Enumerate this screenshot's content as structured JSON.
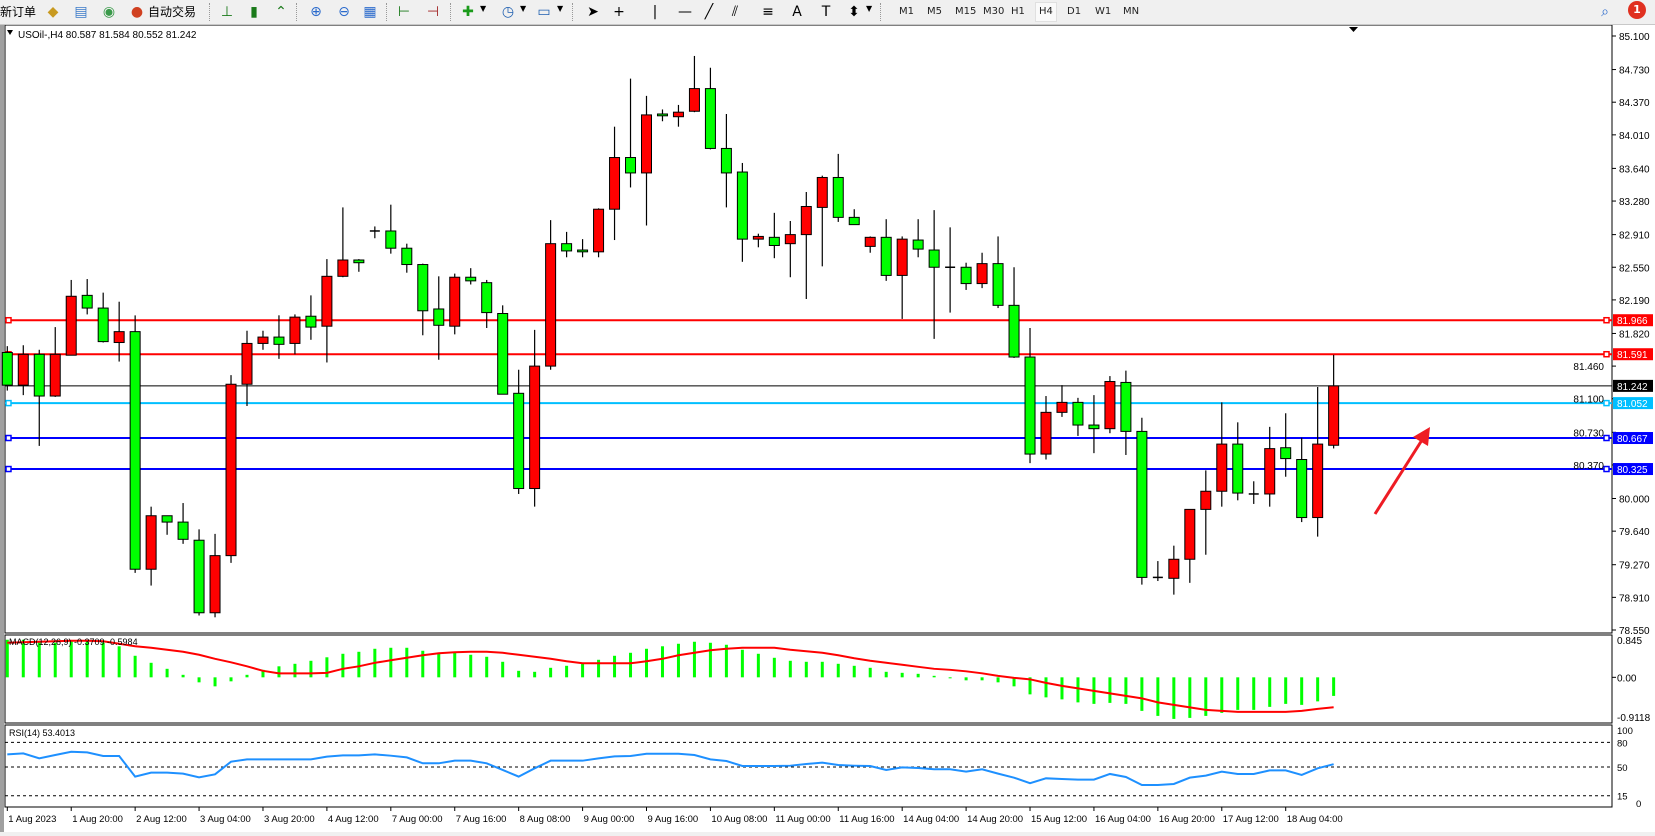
{
  "toolbar": {
    "new_order": "新订单",
    "auto_trading": "自动交易",
    "icons": [
      "gold-bars-icon",
      "database-icon",
      "signal-icon",
      "auto-trading-icon",
      "bar-chart-icon",
      "candlestick-icon",
      "line-chart-icon",
      "zoom-in-icon",
      "zoom-out-icon",
      "tile-windows-icon",
      "chart-shift-icon",
      "autoscroll-icon",
      "new-chart-icon",
      "clock-icon",
      "template-icon",
      "cursor-icon",
      "crosshair-icon",
      "vertical-line-icon",
      "horizontal-line-icon",
      "trendline-icon",
      "equidistant-channel-icon",
      "fibonacci-icon",
      "text-icon",
      "text-label-icon",
      "arrows-icon",
      "search-icon",
      "notification-icon"
    ],
    "timeframes": [
      "M1",
      "M5",
      "M15",
      "M30",
      "H1",
      "H4",
      "D1",
      "W1",
      "MN"
    ],
    "active_timeframe": "H4",
    "notification_count": "1"
  },
  "chart": {
    "header": "USOil-,H4  80.587 81.584 80.552 81.242",
    "macd_label": "MACD(12,26,9) -0.3709 -0.5984",
    "rsi_label": "RSI(14) 53.4013"
  },
  "chart_data": {
    "type": "candlestick",
    "symbol": "USOil-",
    "timeframe": "H4",
    "ohlc_fields": [
      "open",
      "high",
      "low",
      "close"
    ],
    "up_color": "#ff0000",
    "down_color": "#00ff00",
    "ylim": [
      78.55,
      85.1
    ],
    "price_ticks": [
      "85.100",
      "84.730",
      "84.370",
      "84.010",
      "83.640",
      "83.280",
      "82.910",
      "82.550",
      "82.190",
      "81.820",
      "81.460",
      "81.100",
      "80.730",
      "80.370",
      "80.000",
      "79.640",
      "79.270",
      "78.910",
      "78.550"
    ],
    "time_labels": [
      "1 Aug 2023",
      "1 Aug 20:00",
      "2 Aug 12:00",
      "3 Aug 04:00",
      "3 Aug 20:00",
      "4 Aug 12:00",
      "7 Aug 00:00",
      "7 Aug 16:00",
      "8 Aug 08:00",
      "9 Aug 00:00",
      "9 Aug 16:00",
      "10 Aug 08:00",
      "11 Aug 00:00",
      "11 Aug 16:00",
      "14 Aug 04:00",
      "14 Aug 20:00",
      "15 Aug 12:00",
      "16 Aug 04:00",
      "16 Aug 20:00",
      "17 Aug 12:00",
      "18 Aug 04:00"
    ],
    "candles": [
      [
        81.61,
        81.68,
        81.19,
        81.25
      ],
      [
        81.25,
        81.69,
        81.14,
        81.59
      ],
      [
        81.59,
        81.64,
        80.58,
        81.13
      ],
      [
        81.13,
        81.89,
        81.12,
        81.59
      ],
      [
        81.58,
        82.41,
        81.58,
        82.23
      ],
      [
        82.24,
        82.42,
        82.03,
        82.1
      ],
      [
        82.1,
        82.27,
        81.72,
        81.73
      ],
      [
        81.72,
        82.17,
        81.51,
        81.84
      ],
      [
        81.84,
        82.02,
        79.18,
        79.22
      ],
      [
        79.22,
        79.91,
        79.04,
        79.81
      ],
      [
        79.81,
        79.81,
        79.6,
        79.74
      ],
      [
        79.74,
        79.95,
        79.5,
        79.55
      ],
      [
        79.54,
        79.66,
        78.71,
        78.74
      ],
      [
        78.74,
        79.61,
        78.69,
        79.37
      ],
      [
        79.37,
        81.36,
        79.29,
        81.26
      ],
      [
        81.26,
        81.85,
        81.02,
        81.71
      ],
      [
        81.71,
        81.85,
        81.64,
        81.78
      ],
      [
        81.78,
        82.02,
        81.54,
        81.7
      ],
      [
        81.71,
        82.03,
        81.59,
        82.0
      ],
      [
        82.01,
        82.24,
        81.75,
        81.89
      ],
      [
        81.9,
        82.64,
        81.5,
        82.45
      ],
      [
        82.45,
        83.21,
        82.44,
        82.63
      ],
      [
        82.63,
        82.64,
        82.5,
        82.6
      ],
      [
        82.95,
        83.0,
        82.87,
        82.95
      ],
      [
        82.95,
        83.24,
        82.7,
        82.76
      ],
      [
        82.76,
        82.81,
        82.49,
        82.58
      ],
      [
        82.58,
        82.59,
        81.8,
        82.07
      ],
      [
        82.09,
        82.45,
        81.53,
        81.91
      ],
      [
        81.9,
        82.48,
        81.81,
        82.44
      ],
      [
        82.44,
        82.54,
        82.36,
        82.4
      ],
      [
        82.38,
        82.41,
        81.88,
        82.05
      ],
      [
        82.04,
        82.13,
        81.15,
        81.15
      ],
      [
        81.16,
        81.42,
        80.05,
        80.11
      ],
      [
        80.11,
        81.86,
        79.91,
        81.46
      ],
      [
        81.46,
        83.07,
        81.42,
        82.81
      ],
      [
        82.81,
        82.94,
        82.66,
        82.73
      ],
      [
        82.74,
        82.86,
        82.66,
        82.72
      ],
      [
        82.72,
        83.2,
        82.66,
        83.19
      ],
      [
        83.19,
        84.1,
        82.85,
        83.76
      ],
      [
        83.76,
        84.63,
        83.43,
        83.59
      ],
      [
        83.59,
        84.44,
        83.01,
        84.23
      ],
      [
        84.24,
        84.29,
        84.16,
        84.22
      ],
      [
        84.21,
        84.34,
        84.1,
        84.26
      ],
      [
        84.27,
        84.88,
        84.26,
        84.52
      ],
      [
        84.52,
        84.75,
        83.85,
        83.86
      ],
      [
        83.86,
        84.24,
        83.21,
        83.59
      ],
      [
        83.6,
        83.7,
        82.61,
        82.86
      ],
      [
        82.86,
        82.92,
        82.77,
        82.89
      ],
      [
        82.88,
        83.15,
        82.65,
        82.79
      ],
      [
        82.81,
        83.06,
        82.44,
        82.91
      ],
      [
        82.91,
        83.38,
        82.2,
        83.22
      ],
      [
        83.21,
        83.56,
        82.56,
        83.54
      ],
      [
        83.54,
        83.8,
        83.05,
        83.1
      ],
      [
        83.1,
        83.19,
        83.02,
        83.02
      ],
      [
        82.78,
        82.89,
        82.71,
        82.88
      ],
      [
        82.88,
        83.08,
        82.4,
        82.46
      ],
      [
        82.46,
        82.89,
        81.98,
        82.86
      ],
      [
        82.85,
        83.08,
        82.66,
        82.75
      ],
      [
        82.74,
        83.18,
        81.76,
        82.55
      ],
      [
        82.55,
        82.99,
        82.05,
        82.55
      ],
      [
        82.55,
        82.6,
        82.3,
        82.37
      ],
      [
        82.37,
        82.71,
        82.32,
        82.59
      ],
      [
        82.59,
        82.89,
        82.1,
        82.13
      ],
      [
        82.13,
        82.55,
        81.55,
        81.56
      ],
      [
        81.56,
        81.88,
        80.39,
        80.49
      ],
      [
        80.49,
        81.13,
        80.43,
        80.95
      ],
      [
        80.95,
        81.25,
        80.9,
        81.06
      ],
      [
        81.06,
        81.11,
        80.69,
        80.81
      ],
      [
        80.81,
        81.14,
        80.5,
        80.77
      ],
      [
        80.77,
        81.35,
        80.72,
        81.29
      ],
      [
        81.28,
        81.41,
        80.48,
        80.74
      ],
      [
        80.74,
        80.89,
        79.05,
        79.13
      ],
      [
        79.13,
        79.31,
        79.09,
        79.13
      ],
      [
        79.12,
        79.48,
        78.94,
        79.33
      ],
      [
        79.33,
        79.88,
        79.07,
        79.88
      ],
      [
        79.88,
        80.31,
        79.38,
        80.08
      ],
      [
        80.08,
        81.06,
        79.91,
        80.6
      ],
      [
        80.6,
        80.84,
        79.98,
        80.06
      ],
      [
        80.05,
        80.19,
        79.94,
        80.05
      ],
      [
        80.05,
        80.79,
        79.91,
        80.55
      ],
      [
        80.56,
        80.94,
        80.24,
        80.44
      ],
      [
        80.43,
        80.67,
        79.74,
        79.79
      ],
      [
        79.79,
        81.23,
        79.58,
        80.6
      ],
      [
        80.587,
        81.584,
        80.552,
        81.242
      ]
    ],
    "levels": [
      {
        "price": "81.966",
        "color": "#ff0000"
      },
      {
        "price": "81.591",
        "color": "#ff0000"
      },
      {
        "price": "81.242",
        "color": "#000000"
      },
      {
        "price": "81.052",
        "color": "#00bfff"
      },
      {
        "price": "80.667",
        "color": "#0000ff"
      },
      {
        "price": "80.325",
        "color": "#0000ff"
      }
    ],
    "annotation": {
      "type": "arrow",
      "color": "#ee1c24",
      "direction": "up-right"
    },
    "macd": {
      "ylim": [
        -0.9118,
        0.845
      ],
      "ticks": [
        "0.845",
        "0.00",
        "-0.9118"
      ],
      "histogram_color": "#00ff00",
      "signal_color": "#ff0000",
      "histogram": [
        0.75,
        0.75,
        0.72,
        0.69,
        0.72,
        0.72,
        0.69,
        0.62,
        0.43,
        0.29,
        0.17,
        0.05,
        -0.1,
        -0.18,
        -0.08,
        0.05,
        0.15,
        0.22,
        0.27,
        0.33,
        0.4,
        0.47,
        0.51,
        0.57,
        0.59,
        0.59,
        0.53,
        0.49,
        0.49,
        0.45,
        0.41,
        0.31,
        0.13,
        0.11,
        0.19,
        0.23,
        0.27,
        0.35,
        0.43,
        0.49,
        0.57,
        0.62,
        0.67,
        0.71,
        0.69,
        0.65,
        0.55,
        0.47,
        0.39,
        0.33,
        0.31,
        0.31,
        0.27,
        0.23,
        0.19,
        0.11,
        0.09,
        0.07,
        0.03,
        -0.01,
        -0.06,
        -0.06,
        -0.1,
        -0.18,
        -0.34,
        -0.4,
        -0.44,
        -0.5,
        -0.53,
        -0.51,
        -0.53,
        -0.67,
        -0.77,
        -0.83,
        -0.81,
        -0.77,
        -0.71,
        -0.65,
        -0.65,
        -0.59,
        -0.53,
        -0.55,
        -0.48,
        -0.3709
      ],
      "signal": [
        0.69,
        0.7,
        0.71,
        0.72,
        0.73,
        0.73,
        0.72,
        0.67,
        0.62,
        0.59,
        0.55,
        0.51,
        0.45,
        0.37,
        0.3,
        0.22,
        0.13,
        0.08,
        0.08,
        0.08,
        0.09,
        0.17,
        0.22,
        0.29,
        0.34,
        0.39,
        0.44,
        0.48,
        0.5,
        0.51,
        0.51,
        0.49,
        0.45,
        0.41,
        0.37,
        0.32,
        0.28,
        0.28,
        0.28,
        0.28,
        0.32,
        0.37,
        0.44,
        0.49,
        0.54,
        0.57,
        0.59,
        0.59,
        0.59,
        0.55,
        0.52,
        0.49,
        0.44,
        0.38,
        0.33,
        0.29,
        0.25,
        0.21,
        0.17,
        0.15,
        0.12,
        0.08,
        0.03,
        -0.01,
        -0.04,
        -0.11,
        -0.17,
        -0.22,
        -0.27,
        -0.32,
        -0.37,
        -0.42,
        -0.5,
        -0.55,
        -0.6,
        -0.65,
        -0.67,
        -0.69,
        -0.69,
        -0.69,
        -0.69,
        -0.67,
        -0.63,
        -0.5984
      ]
    },
    "rsi": {
      "ylim": [
        0,
        100
      ],
      "ticks": [
        "100",
        "80",
        "50",
        "15",
        "0"
      ],
      "levels": [
        80,
        50,
        15
      ],
      "color": "#1e90ff",
      "values": [
        65.4,
        66.6,
        60.5,
        64.6,
        68.6,
        67.8,
        63.4,
        63.4,
        38.3,
        43.1,
        43.1,
        41.9,
        37.4,
        41.1,
        56.5,
        59.3,
        59.3,
        59.3,
        59.3,
        59.3,
        62.6,
        64.2,
        64.2,
        65.4,
        63.8,
        61.7,
        54.5,
        54.5,
        57.7,
        57.7,
        54.5,
        46.4,
        38.3,
        48.4,
        57.7,
        57.7,
        57.7,
        60.5,
        63.0,
        63.4,
        66.2,
        66.2,
        66.2,
        64.6,
        59.3,
        57.3,
        51.2,
        51.2,
        51.2,
        51.6,
        53.6,
        55.3,
        52.4,
        51.6,
        51.2,
        46.4,
        49.6,
        48.8,
        47.2,
        47.2,
        44.3,
        47.2,
        41.9,
        37.0,
        30.2,
        36.2,
        35.4,
        34.6,
        34.6,
        41.5,
        37.8,
        28.1,
        28.1,
        29.3,
        37.0,
        39.5,
        44.3,
        41.5,
        41.5,
        45.9,
        45.9,
        40.3,
        48.4,
        53.4013
      ]
    }
  }
}
